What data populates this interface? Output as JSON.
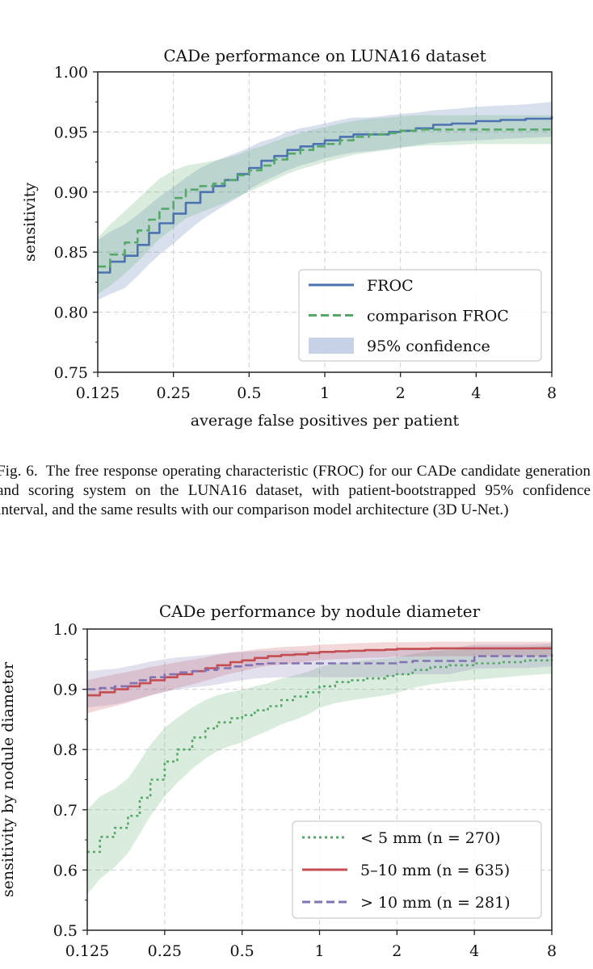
{
  "figure_top": {
    "caption_label": "Fig. 6.",
    "caption_text": "The free response operating characteristic (FROC) for our CADe candidate generation and scoring system on the LUNA16 dataset, with patient-bootstrapped 95% confidence interval, and the same results with our comparison model architecture (3D U-Net.)"
  },
  "chart_data": [
    {
      "type": "line",
      "title": "CADe performance on LUNA16 dataset",
      "xlabel": "average false positives per patient",
      "ylabel": "sensitivity",
      "xscale": "log2",
      "xlim": [
        0.125,
        8
      ],
      "ylim": [
        0.75,
        1.0
      ],
      "xticks": [
        0.125,
        0.25,
        0.5,
        1,
        2,
        4,
        8
      ],
      "xtick_labels": [
        "0.125",
        "0.25",
        "0.5",
        "1",
        "2",
        "4",
        "8"
      ],
      "yticks": [
        0.75,
        0.8,
        0.85,
        0.9,
        0.95,
        1.0
      ],
      "ytick_labels": [
        "0.75",
        "0.80",
        "0.85",
        "0.90",
        "0.95",
        "1.00"
      ],
      "grid": true,
      "legend_position": "lower-right",
      "series": [
        {
          "name": "FROC",
          "style": "solid",
          "color": "#4c72b0",
          "x": [
            0.125,
            0.14,
            0.16,
            0.18,
            0.2,
            0.22,
            0.25,
            0.28,
            0.32,
            0.36,
            0.4,
            0.45,
            0.5,
            0.56,
            0.63,
            0.71,
            0.8,
            0.9,
            1.0,
            1.15,
            1.3,
            1.5,
            1.8,
            2.0,
            2.3,
            2.7,
            3.2,
            4.0,
            5.0,
            6.3,
            8.0
          ],
          "y": [
            0.833,
            0.842,
            0.847,
            0.856,
            0.866,
            0.874,
            0.882,
            0.891,
            0.9,
            0.905,
            0.91,
            0.915,
            0.92,
            0.926,
            0.93,
            0.935,
            0.938,
            0.94,
            0.943,
            0.946,
            0.948,
            0.948,
            0.95,
            0.951,
            0.953,
            0.956,
            0.957,
            0.959,
            0.96,
            0.961,
            0.963
          ],
          "ci_lower": [
            0.81,
            0.815,
            0.82,
            0.83,
            0.84,
            0.848,
            0.857,
            0.866,
            0.876,
            0.883,
            0.889,
            0.895,
            0.902,
            0.908,
            0.913,
            0.918,
            0.922,
            0.925,
            0.928,
            0.931,
            0.933,
            0.934,
            0.936,
            0.937,
            0.939,
            0.941,
            0.942,
            0.943,
            0.944,
            0.945,
            0.946
          ],
          "ci_upper": [
            0.86,
            0.867,
            0.873,
            0.881,
            0.889,
            0.896,
            0.904,
            0.912,
            0.92,
            0.925,
            0.929,
            0.933,
            0.937,
            0.942,
            0.945,
            0.95,
            0.953,
            0.955,
            0.957,
            0.96,
            0.962,
            0.962,
            0.964,
            0.965,
            0.966,
            0.968,
            0.969,
            0.971,
            0.972,
            0.973,
            0.975
          ]
        },
        {
          "name": "comparison FROC",
          "style": "dashed",
          "color": "#55a868",
          "x": [
            0.125,
            0.14,
            0.16,
            0.18,
            0.2,
            0.22,
            0.25,
            0.28,
            0.32,
            0.36,
            0.4,
            0.45,
            0.5,
            0.56,
            0.63,
            0.71,
            0.8,
            0.9,
            1.0,
            1.15,
            1.3,
            1.5,
            1.8,
            2.0,
            2.3,
            2.7,
            3.2,
            4.0,
            5.0,
            6.3,
            8.0
          ],
          "y": [
            0.838,
            0.848,
            0.858,
            0.868,
            0.877,
            0.886,
            0.895,
            0.902,
            0.905,
            0.907,
            0.91,
            0.914,
            0.918,
            0.922,
            0.927,
            0.932,
            0.935,
            0.938,
            0.94,
            0.943,
            0.946,
            0.948,
            0.949,
            0.951,
            0.952,
            0.952,
            0.952,
            0.952,
            0.952,
            0.952,
            0.952
          ],
          "ci_lower": [
            0.815,
            0.822,
            0.832,
            0.842,
            0.852,
            0.861,
            0.87,
            0.878,
            0.883,
            0.887,
            0.891,
            0.896,
            0.9,
            0.905,
            0.91,
            0.915,
            0.919,
            0.922,
            0.925,
            0.928,
            0.931,
            0.933,
            0.935,
            0.937,
            0.938,
            0.939,
            0.939,
            0.94,
            0.94,
            0.94,
            0.94
          ],
          "ci_upper": [
            0.862,
            0.873,
            0.884,
            0.894,
            0.903,
            0.911,
            0.918,
            0.922,
            0.924,
            0.926,
            0.928,
            0.931,
            0.935,
            0.938,
            0.942,
            0.946,
            0.949,
            0.952,
            0.954,
            0.957,
            0.959,
            0.961,
            0.962,
            0.963,
            0.964,
            0.964,
            0.964,
            0.964,
            0.964,
            0.964,
            0.964
          ]
        }
      ],
      "legend": [
        {
          "label": "FROC",
          "kind": "line",
          "style": "solid",
          "color": "#4c72b0"
        },
        {
          "label": "comparison FROC",
          "kind": "line",
          "style": "dashed",
          "color": "#55a868"
        },
        {
          "label": "95% confidence",
          "kind": "band",
          "color": "#c7d1e8"
        }
      ]
    },
    {
      "type": "line",
      "title": "CADe performance by nodule diameter",
      "xlabel": "",
      "ylabel": "sensitivity by nodule diameter",
      "xscale": "log2",
      "xlim": [
        0.125,
        8
      ],
      "ylim": [
        0.5,
        1.0
      ],
      "xticks": [
        0.125,
        0.25,
        0.5,
        1,
        2,
        4,
        8
      ],
      "xtick_labels": [
        "0.125",
        "0.25",
        "0.5",
        "1",
        "2",
        "4",
        "8"
      ],
      "yticks": [
        0.5,
        0.6,
        0.7,
        0.8,
        0.9,
        1.0
      ],
      "ytick_labels": [
        "0.5",
        "0.6",
        "0.7",
        "0.8",
        "0.9",
        "1.0"
      ],
      "grid": true,
      "legend_position": "lower-right",
      "series": [
        {
          "name": "< 5 mm (n = 270)",
          "style": "dotted",
          "color": "#55a868",
          "x": [
            0.125,
            0.14,
            0.16,
            0.18,
            0.2,
            0.22,
            0.25,
            0.28,
            0.32,
            0.36,
            0.4,
            0.45,
            0.5,
            0.56,
            0.63,
            0.71,
            0.8,
            0.9,
            1.0,
            1.15,
            1.3,
            1.5,
            1.8,
            2.0,
            2.3,
            2.7,
            3.2,
            4.0,
            5.0,
            6.3,
            8.0
          ],
          "y": [
            0.63,
            0.655,
            0.67,
            0.69,
            0.72,
            0.75,
            0.78,
            0.8,
            0.82,
            0.835,
            0.845,
            0.852,
            0.857,
            0.865,
            0.872,
            0.882,
            0.888,
            0.895,
            0.905,
            0.912,
            0.915,
            0.918,
            0.922,
            0.925,
            0.932,
            0.937,
            0.94,
            0.943,
            0.945,
            0.948,
            0.95
          ],
          "ci_lower": [
            0.56,
            0.585,
            0.605,
            0.628,
            0.66,
            0.69,
            0.722,
            0.745,
            0.768,
            0.785,
            0.797,
            0.806,
            0.812,
            0.822,
            0.831,
            0.842,
            0.849,
            0.858,
            0.869,
            0.877,
            0.881,
            0.885,
            0.89,
            0.894,
            0.902,
            0.908,
            0.912,
            0.916,
            0.919,
            0.923,
            0.926
          ],
          "ci_upper": [
            0.7,
            0.722,
            0.735,
            0.752,
            0.78,
            0.808,
            0.836,
            0.853,
            0.87,
            0.882,
            0.89,
            0.895,
            0.899,
            0.905,
            0.91,
            0.918,
            0.923,
            0.929,
            0.937,
            0.943,
            0.945,
            0.948,
            0.951,
            0.953,
            0.959,
            0.963,
            0.965,
            0.967,
            0.968,
            0.97,
            0.972
          ]
        },
        {
          "name": "5–10 mm (n = 635)",
          "style": "solid",
          "color": "#c44e52",
          "x": [
            0.125,
            0.14,
            0.16,
            0.18,
            0.2,
            0.22,
            0.25,
            0.28,
            0.32,
            0.36,
            0.4,
            0.45,
            0.5,
            0.56,
            0.63,
            0.71,
            0.8,
            0.9,
            1.0,
            1.15,
            1.3,
            1.5,
            1.8,
            2.0,
            2.3,
            2.7,
            3.2,
            4.0,
            5.0,
            6.3,
            8.0
          ],
          "y": [
            0.89,
            0.895,
            0.9,
            0.905,
            0.91,
            0.915,
            0.92,
            0.925,
            0.93,
            0.935,
            0.94,
            0.945,
            0.948,
            0.952,
            0.955,
            0.957,
            0.958,
            0.96,
            0.962,
            0.963,
            0.964,
            0.965,
            0.966,
            0.967,
            0.967,
            0.968,
            0.968,
            0.968,
            0.968,
            0.968,
            0.968
          ],
          "ci_lower": [
            0.86,
            0.866,
            0.872,
            0.878,
            0.884,
            0.89,
            0.896,
            0.902,
            0.908,
            0.914,
            0.92,
            0.926,
            0.93,
            0.935,
            0.939,
            0.941,
            0.943,
            0.946,
            0.948,
            0.95,
            0.951,
            0.952,
            0.953,
            0.954,
            0.954,
            0.955,
            0.955,
            0.955,
            0.955,
            0.955,
            0.955
          ],
          "ci_upper": [
            0.915,
            0.92,
            0.925,
            0.929,
            0.933,
            0.937,
            0.941,
            0.945,
            0.949,
            0.953,
            0.957,
            0.961,
            0.963,
            0.966,
            0.968,
            0.97,
            0.971,
            0.972,
            0.974,
            0.975,
            0.976,
            0.977,
            0.978,
            0.978,
            0.978,
            0.979,
            0.979,
            0.979,
            0.979,
            0.979,
            0.979
          ]
        },
        {
          "name": "> 10 mm (n = 281)",
          "style": "dashed",
          "color": "#8172b2",
          "x": [
            0.125,
            0.14,
            0.16,
            0.18,
            0.2,
            0.22,
            0.25,
            0.28,
            0.32,
            0.36,
            0.4,
            0.45,
            0.5,
            0.56,
            0.63,
            0.71,
            0.8,
            0.9,
            1.0,
            1.15,
            1.3,
            1.5,
            1.8,
            2.0,
            2.3,
            2.7,
            3.2,
            4.0,
            5.0,
            6.3,
            8.0
          ],
          "y": [
            0.9,
            0.902,
            0.905,
            0.91,
            0.915,
            0.92,
            0.925,
            0.928,
            0.93,
            0.932,
            0.935,
            0.938,
            0.94,
            0.942,
            0.943,
            0.943,
            0.943,
            0.943,
            0.943,
            0.943,
            0.943,
            0.943,
            0.943,
            0.945,
            0.947,
            0.947,
            0.947,
            0.955,
            0.955,
            0.955,
            0.958
          ],
          "ci_lower": [
            0.87,
            0.872,
            0.875,
            0.88,
            0.885,
            0.89,
            0.895,
            0.9,
            0.903,
            0.905,
            0.908,
            0.912,
            0.915,
            0.918,
            0.919,
            0.92,
            0.92,
            0.92,
            0.92,
            0.92,
            0.92,
            0.92,
            0.92,
            0.923,
            0.925,
            0.925,
            0.925,
            0.934,
            0.935,
            0.935,
            0.938
          ],
          "ci_upper": [
            0.93,
            0.932,
            0.934,
            0.938,
            0.942,
            0.946,
            0.95,
            0.953,
            0.955,
            0.957,
            0.959,
            0.961,
            0.962,
            0.963,
            0.964,
            0.964,
            0.964,
            0.964,
            0.964,
            0.964,
            0.964,
            0.964,
            0.964,
            0.966,
            0.968,
            0.968,
            0.968,
            0.974,
            0.974,
            0.974,
            0.976
          ]
        }
      ],
      "legend": [
        {
          "label": "< 5 mm (n = 270)",
          "kind": "line",
          "style": "dotted",
          "color": "#55a868"
        },
        {
          "label": "5–10 mm (n = 635)",
          "kind": "line",
          "style": "solid",
          "color": "#c44e52"
        },
        {
          "label": "> 10 mm (n = 281)",
          "kind": "line",
          "style": "dashed",
          "color": "#8172b2"
        }
      ]
    }
  ]
}
